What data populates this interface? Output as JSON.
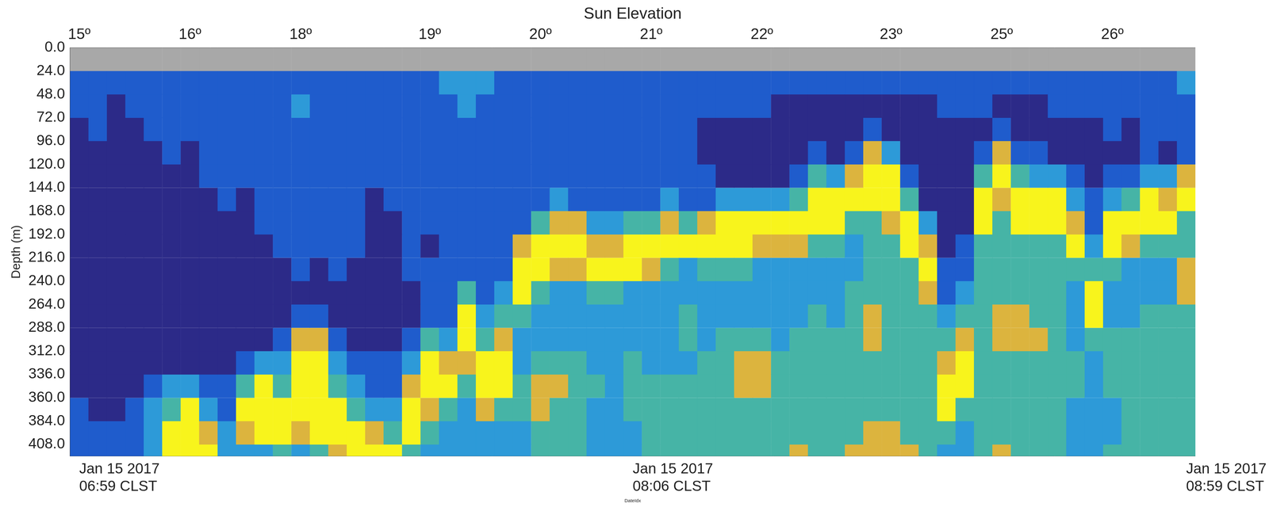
{
  "chart_data": {
    "type": "heatmap",
    "x_title": "DateIdx",
    "x2_title": "Sun Elevation",
    "y_title": "Depth (m)",
    "categories": [
      "Jan 15 2017\n06:59 CLST",
      null,
      null,
      null,
      null,
      null,
      null,
      null,
      null,
      null,
      null,
      null,
      null,
      null,
      null,
      null,
      null,
      null,
      null,
      null,
      null,
      null,
      null,
      null,
      null,
      null,
      null,
      null,
      null,
      null,
      "Jan 15 2017\n08:06 CLST",
      null,
      null,
      null,
      null,
      null,
      null,
      null,
      null,
      null,
      null,
      null,
      null,
      null,
      null,
      null,
      null,
      null,
      null,
      null,
      null,
      null,
      null,
      null,
      null,
      null,
      null,
      null,
      null,
      null,
      "Jan 15 2017\n08:59 CLST"
    ],
    "x2_categories": [
      "15º",
      null,
      null,
      null,
      null,
      null,
      "16º",
      null,
      null,
      null,
      null,
      null,
      "18º",
      null,
      null,
      null,
      null,
      null,
      null,
      "19º",
      null,
      null,
      null,
      null,
      null,
      "20º",
      null,
      null,
      null,
      null,
      null,
      "21º",
      null,
      null,
      null,
      null,
      null,
      "22º",
      null,
      null,
      null,
      null,
      null,
      null,
      "23º",
      null,
      null,
      null,
      null,
      null,
      "25º",
      null,
      null,
      null,
      null,
      null,
      "26º",
      null,
      null,
      null,
      null
    ],
    "depth_edges": [
      0,
      24,
      48,
      72,
      96,
      120,
      144,
      168,
      192,
      216,
      240,
      264,
      288,
      312,
      336,
      360,
      384,
      408,
      420
    ],
    "ylim": [
      0,
      420
    ],
    "yticks": [
      {
        "value": 0,
        "label": "0.0"
      },
      {
        "value": 24,
        "label": "24.0"
      },
      {
        "value": 48,
        "label": "48.0"
      },
      {
        "value": 72,
        "label": "72.0"
      },
      {
        "value": 96,
        "label": "96.0"
      },
      {
        "value": 120,
        "label": "120.0"
      },
      {
        "value": 144,
        "label": "144.0"
      },
      {
        "value": 168,
        "label": "168.0"
      },
      {
        "value": 192,
        "label": "192.0"
      },
      {
        "value": 216,
        "label": "216.0"
      },
      {
        "value": 240,
        "label": "240.0"
      },
      {
        "value": 264,
        "label": "264.0"
      },
      {
        "value": 288,
        "label": "288.0"
      },
      {
        "value": 312,
        "label": "312.0"
      },
      {
        "value": 336,
        "label": "336.0"
      },
      {
        "value": 360,
        "label": "360.0"
      },
      {
        "value": 384,
        "label": "384.0"
      },
      {
        "value": 408,
        "label": "408.0"
      }
    ],
    "zlim": [
      0,
      5
    ],
    "grid": false,
    "cells": [
      [
        null,
        1,
        1,
        0,
        0,
        0,
        0,
        0,
        0,
        0,
        0,
        0,
        0,
        0,
        0,
        1,
        1,
        1
      ],
      [
        null,
        1,
        1,
        1,
        0,
        0,
        0,
        0,
        0,
        0,
        0,
        0,
        0,
        0,
        0,
        0,
        1,
        1
      ],
      [
        null,
        1,
        0,
        0,
        0,
        0,
        0,
        0,
        0,
        0,
        0,
        0,
        0,
        0,
        0,
        0,
        1,
        1
      ],
      [
        null,
        1,
        1,
        0,
        0,
        0,
        0,
        0,
        0,
        0,
        0,
        0,
        0,
        0,
        0,
        1,
        1,
        1
      ],
      [
        null,
        1,
        1,
        1,
        0,
        0,
        0,
        0,
        0,
        0,
        0,
        0,
        0,
        0,
        1,
        2,
        2,
        2
      ],
      [
        null,
        1,
        1,
        1,
        1,
        0,
        0,
        0,
        0,
        0,
        0,
        0,
        0,
        0,
        2,
        3,
        5,
        5
      ],
      [
        null,
        1,
        1,
        1,
        0,
        0,
        0,
        0,
        0,
        0,
        0,
        0,
        0,
        0,
        2,
        5,
        5,
        5
      ],
      [
        null,
        1,
        1,
        1,
        1,
        1,
        0,
        0,
        0,
        0,
        0,
        0,
        0,
        0,
        1,
        2,
        4,
        5
      ],
      [
        null,
        1,
        1,
        1,
        1,
        1,
        1,
        0,
        0,
        0,
        0,
        0,
        0,
        0,
        1,
        1,
        2,
        2
      ],
      [
        null,
        1,
        1,
        1,
        1,
        1,
        0,
        0,
        0,
        0,
        0,
        0,
        0,
        1,
        3,
        5,
        4,
        2
      ],
      [
        null,
        1,
        1,
        1,
        1,
        1,
        1,
        1,
        0,
        0,
        0,
        0,
        0,
        2,
        5,
        5,
        5,
        2
      ],
      [
        null,
        1,
        1,
        1,
        1,
        1,
        1,
        1,
        1,
        0,
        0,
        0,
        1,
        2,
        3,
        5,
        5,
        3
      ],
      [
        null,
        1,
        2,
        1,
        1,
        1,
        1,
        1,
        1,
        1,
        0,
        1,
        4,
        5,
        5,
        5,
        4,
        2
      ],
      [
        null,
        1,
        1,
        1,
        1,
        1,
        1,
        1,
        1,
        0,
        0,
        1,
        4,
        5,
        5,
        5,
        5,
        3
      ],
      [
        null,
        1,
        1,
        1,
        1,
        1,
        1,
        1,
        1,
        1,
        0,
        0,
        1,
        2,
        3,
        5,
        5,
        4
      ],
      [
        null,
        1,
        1,
        1,
        1,
        1,
        1,
        1,
        1,
        0,
        0,
        0,
        0,
        1,
        2,
        3,
        5,
        5
      ],
      [
        null,
        1,
        1,
        1,
        1,
        1,
        0,
        0,
        0,
        0,
        0,
        0,
        0,
        1,
        1,
        2,
        4,
        5
      ],
      [
        null,
        1,
        1,
        1,
        1,
        1,
        1,
        0,
        0,
        0,
        0,
        0,
        0,
        1,
        1,
        2,
        3,
        5
      ],
      [
        null,
        1,
        1,
        1,
        1,
        1,
        1,
        1,
        1,
        1,
        0,
        0,
        1,
        2,
        4,
        5,
        5,
        3
      ],
      [
        null,
        1,
        1,
        1,
        1,
        1,
        1,
        1,
        0,
        1,
        1,
        1,
        3,
        5,
        5,
        4,
        3,
        2
      ],
      [
        null,
        2,
        1,
        1,
        1,
        1,
        1,
        1,
        1,
        1,
        1,
        1,
        2,
        4,
        5,
        3,
        2,
        2
      ],
      [
        null,
        2,
        2,
        1,
        1,
        1,
        1,
        1,
        1,
        1,
        3,
        5,
        5,
        4,
        3,
        2,
        2,
        2
      ],
      [
        null,
        2,
        1,
        1,
        1,
        1,
        1,
        1,
        1,
        1,
        1,
        2,
        3,
        5,
        5,
        4,
        2,
        2
      ],
      [
        null,
        1,
        1,
        1,
        1,
        1,
        1,
        1,
        1,
        1,
        2,
        3,
        4,
        5,
        5,
        3,
        2,
        2
      ],
      [
        null,
        1,
        1,
        1,
        1,
        1,
        1,
        1,
        4,
        5,
        5,
        3,
        2,
        2,
        3,
        3,
        2,
        2
      ],
      [
        null,
        1,
        1,
        1,
        1,
        1,
        1,
        3,
        5,
        5,
        3,
        2,
        2,
        3,
        4,
        4,
        3,
        3
      ],
      [
        null,
        1,
        1,
        1,
        1,
        1,
        2,
        4,
        5,
        4,
        2,
        2,
        2,
        3,
        4,
        3,
        3,
        3
      ],
      [
        null,
        1,
        1,
        1,
        1,
        1,
        1,
        4,
        5,
        4,
        2,
        2,
        2,
        3,
        3,
        3,
        3,
        3
      ],
      [
        null,
        1,
        1,
        1,
        1,
        1,
        1,
        2,
        4,
        5,
        3,
        2,
        2,
        2,
        3,
        2,
        2,
        2
      ],
      [
        null,
        1,
        1,
        1,
        1,
        1,
        1,
        2,
        4,
        5,
        3,
        2,
        2,
        2,
        2,
        2,
        2,
        2
      ],
      [
        null,
        1,
        1,
        1,
        1,
        1,
        1,
        3,
        5,
        5,
        2,
        2,
        2,
        3,
        3,
        3,
        2,
        2
      ],
      [
        null,
        1,
        1,
        1,
        1,
        1,
        1,
        3,
        5,
        4,
        2,
        2,
        2,
        2,
        3,
        3,
        3,
        3
      ],
      [
        null,
        1,
        1,
        1,
        1,
        1,
        2,
        4,
        5,
        3,
        2,
        2,
        2,
        2,
        3,
        3,
        3,
        3
      ],
      [
        null,
        1,
        1,
        1,
        1,
        1,
        1,
        3,
        5,
        2,
        2,
        3,
        3,
        2,
        3,
        3,
        3,
        3
      ],
      [
        null,
        1,
        1,
        0,
        0,
        1,
        1,
        4,
        5,
        3,
        2,
        2,
        2,
        3,
        3,
        3,
        3,
        3
      ],
      [
        null,
        1,
        1,
        0,
        0,
        0,
        2,
        5,
        5,
        3,
        2,
        2,
        3,
        3,
        3,
        3,
        3,
        3
      ],
      [
        null,
        1,
        1,
        0,
        0,
        0,
        2,
        5,
        5,
        3,
        2,
        2,
        3,
        4,
        4,
        3,
        3,
        3
      ],
      [
        null,
        1,
        1,
        0,
        0,
        0,
        2,
        5,
        4,
        2,
        2,
        2,
        3,
        4,
        4,
        3,
        3,
        3
      ],
      [
        null,
        1,
        0,
        0,
        0,
        0,
        2,
        5,
        4,
        2,
        2,
        2,
        2,
        3,
        3,
        3,
        3,
        3
      ],
      [
        null,
        1,
        0,
        0,
        0,
        1,
        3,
        5,
        4,
        2,
        2,
        2,
        3,
        3,
        3,
        3,
        3,
        4
      ],
      [
        null,
        1,
        0,
        0,
        1,
        3,
        5,
        5,
        3,
        2,
        2,
        3,
        3,
        3,
        3,
        3,
        3,
        3
      ],
      [
        null,
        1,
        0,
        0,
        0,
        2,
        5,
        5,
        3,
        2,
        2,
        2,
        3,
        3,
        3,
        3,
        3,
        3
      ],
      [
        null,
        1,
        0,
        0,
        1,
        4,
        5,
        3,
        2,
        2,
        3,
        3,
        3,
        3,
        3,
        3,
        3,
        4
      ],
      [
        null,
        1,
        0,
        1,
        4,
        5,
        5,
        3,
        3,
        3,
        3,
        4,
        4,
        3,
        3,
        3,
        4,
        4
      ],
      [
        null,
        1,
        0,
        0,
        2,
        5,
        5,
        4,
        3,
        3,
        3,
        3,
        3,
        3,
        3,
        3,
        4,
        4
      ],
      [
        null,
        1,
        0,
        0,
        0,
        1,
        3,
        5,
        5,
        3,
        3,
        3,
        3,
        3,
        3,
        3,
        3,
        4
      ],
      [
        null,
        1,
        0,
        0,
        0,
        0,
        0,
        2,
        4,
        5,
        4,
        3,
        3,
        3,
        3,
        3,
        3,
        3
      ],
      [
        null,
        1,
        1,
        0,
        0,
        0,
        0,
        0,
        0,
        1,
        1,
        2,
        3,
        4,
        5,
        5,
        3,
        2
      ],
      [
        null,
        1,
        1,
        0,
        0,
        0,
        0,
        0,
        1,
        1,
        2,
        3,
        4,
        5,
        5,
        3,
        2,
        2
      ],
      [
        null,
        1,
        1,
        0,
        1,
        3,
        5,
        5,
        3,
        3,
        3,
        3,
        3,
        3,
        3,
        3,
        3,
        3
      ],
      [
        null,
        1,
        0,
        1,
        4,
        5,
        4,
        3,
        3,
        3,
        3,
        4,
        4,
        3,
        3,
        3,
        3,
        4
      ],
      [
        null,
        1,
        0,
        0,
        1,
        3,
        5,
        5,
        3,
        3,
        3,
        4,
        4,
        3,
        3,
        3,
        3,
        3
      ],
      [
        null,
        1,
        0,
        0,
        1,
        2,
        5,
        5,
        3,
        3,
        3,
        3,
        4,
        3,
        3,
        3,
        3,
        3
      ],
      [
        null,
        1,
        1,
        0,
        0,
        2,
        5,
        5,
        3,
        3,
        3,
        3,
        3,
        3,
        3,
        3,
        3,
        3
      ],
      [
        null,
        1,
        1,
        0,
        0,
        1,
        2,
        4,
        5,
        3,
        2,
        2,
        2,
        3,
        3,
        2,
        2,
        2
      ],
      [
        null,
        1,
        1,
        0,
        0,
        0,
        1,
        1,
        2,
        3,
        5,
        5,
        3,
        2,
        2,
        2,
        2,
        2
      ],
      [
        null,
        1,
        1,
        1,
        0,
        1,
        2,
        5,
        5,
        3,
        2,
        2,
        3,
        3,
        3,
        2,
        2,
        3
      ],
      [
        null,
        1,
        1,
        0,
        0,
        1,
        3,
        5,
        4,
        2,
        2,
        2,
        3,
        3,
        3,
        3,
        3,
        3
      ],
      [
        null,
        1,
        1,
        1,
        1,
        2,
        5,
        5,
        3,
        2,
        2,
        3,
        3,
        3,
        3,
        3,
        3,
        3
      ],
      [
        null,
        1,
        1,
        1,
        0,
        2,
        4,
        5,
        3,
        2,
        2,
        3,
        3,
        3,
        3,
        3,
        3,
        3
      ],
      [
        null,
        2,
        1,
        1,
        1,
        4,
        5,
        3,
        3,
        4,
        4,
        3,
        3,
        3,
        3,
        3,
        3,
        3
      ]
    ]
  }
}
